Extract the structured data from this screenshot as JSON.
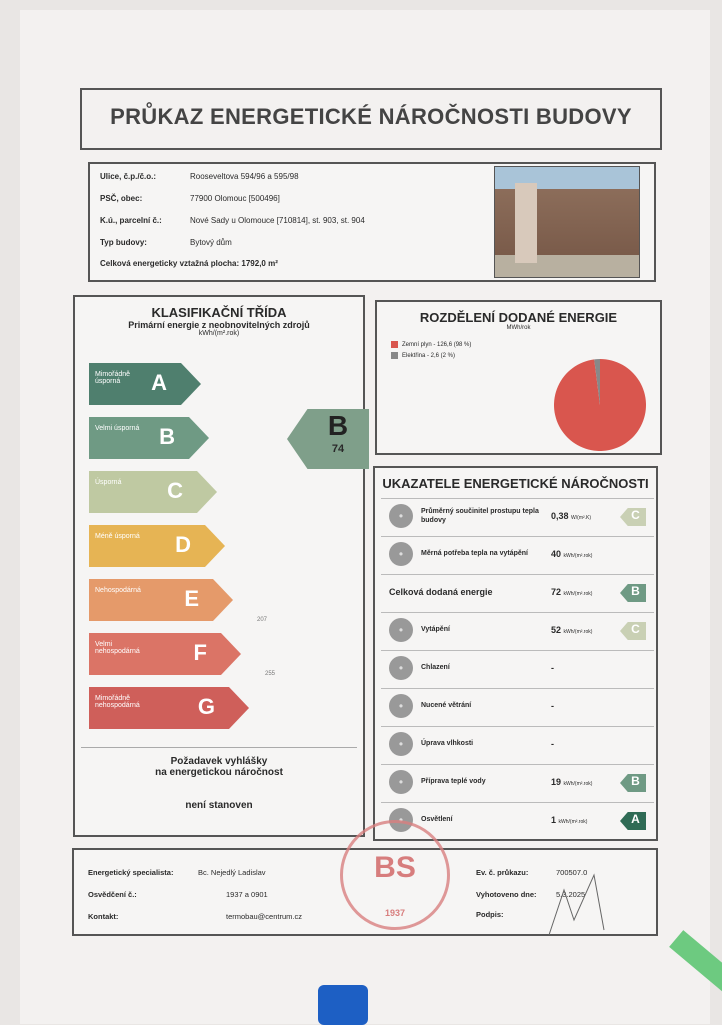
{
  "title": "PRŮKAZ ENERGETICKÉ NÁROČNOSTI BUDOVY",
  "info": {
    "street_label": "Ulice, č.p./č.o.:",
    "street": "Rooseveltova 594/96 a 595/98",
    "psc_label": "PSČ, obec:",
    "psc": "77900 Olomouc [500496]",
    "ku_label": "K.ú., parcelní č.:",
    "ku": "Nové Sady u Olomouce [710814], st. 903, st. 904",
    "type_label": "Typ budovy:",
    "type": "Bytový dům",
    "area_label": "Celková energeticky vztažná plocha:",
    "area": "1792,0 m²"
  },
  "klasifikace": {
    "title": "KLASIFIKAČNÍ TŘÍDA",
    "subtitle": "Primární energie z neobnovitelných zdrojů",
    "unit": "kWh/(m².rok)",
    "bands": [
      {
        "letter": "A",
        "label": "Mimořádně úsporná",
        "color": "#4f7f6e"
      },
      {
        "letter": "B",
        "label": "Velmi úsporná",
        "color": "#6f9a84"
      },
      {
        "letter": "C",
        "label": "Úsporná",
        "color": "#bfc9a2"
      },
      {
        "letter": "D",
        "label": "Méně úsporná",
        "color": "#e6b454"
      },
      {
        "letter": "E",
        "label": "Nehospodárná",
        "color": "#e59a6a"
      },
      {
        "letter": "F",
        "label": "Velmi nehospodárná",
        "color": "#db7466"
      },
      {
        "letter": "G",
        "label": "Mimořádně nehospodárná",
        "color": "#cf5f5a"
      }
    ],
    "thresholds": {
      "F": "207",
      "G": "255"
    },
    "current": {
      "class": "B",
      "value": "74"
    },
    "requirement_title_1": "Požadavek vyhlášky",
    "requirement_title_2": "na energetickou náročnost",
    "requirement_value": "není stanoven"
  },
  "rozdeleni": {
    "title": "ROZDĚLENÍ DODANÉ ENERGIE",
    "unit": "MWh/rok",
    "legend": [
      {
        "label": "Zemní plyn - 126,6 (98 %)",
        "color": "#d9564e"
      },
      {
        "label": "Elektřina - 2,6 (2 %)",
        "color": "#888888"
      }
    ],
    "chart_data": {
      "type": "pie",
      "categories": [
        "Zemní plyn",
        "Elektřina"
      ],
      "values": [
        126.6,
        2.6
      ],
      "percent": [
        98,
        2
      ]
    }
  },
  "ukazatele": {
    "title": "UKAZATELE ENERGETICKÉ NÁROČNOSTI",
    "rows": [
      {
        "name": "Průměrný součinitel prostupu tepla budovy",
        "value": "0,38",
        "unit": "W/(m².K)",
        "class": "C",
        "color": "#c9d0b4",
        "icon": "house-icon"
      },
      {
        "name": "Měrná potřeba tepla na vytápění",
        "value": "40",
        "unit": "kWh/(m².rok)",
        "class": "",
        "color": "",
        "icon": "radiator-icon"
      },
      {
        "name": "Celková dodaná energie",
        "value": "72",
        "unit": "kWh/(m².rok)",
        "class": "B",
        "color": "#6f9a84",
        "icon": ""
      },
      {
        "name": "Vytápění",
        "value": "52",
        "unit": "kWh/(m².rok)",
        "class": "C",
        "color": "#c9d0b4",
        "icon": "heating-icon"
      },
      {
        "name": "Chlazení",
        "value": "-",
        "unit": "",
        "class": "",
        "color": "",
        "icon": "thermometer-icon"
      },
      {
        "name": "Nucené větrání",
        "value": "-",
        "unit": "",
        "class": "",
        "color": "",
        "icon": "fan-icon"
      },
      {
        "name": "Úprava vlhkosti",
        "value": "-",
        "unit": "",
        "class": "",
        "color": "",
        "icon": "drop-icon"
      },
      {
        "name": "Příprava teplé vody",
        "value": "19",
        "unit": "kWh/(m².rok)",
        "class": "B",
        "color": "#6f9a84",
        "icon": "faucet-icon"
      },
      {
        "name": "Osvětlení",
        "value": "1",
        "unit": "kWh/(m².rok)",
        "class": "A",
        "color": "#2f6b55",
        "icon": "bulb-icon"
      }
    ]
  },
  "footer": {
    "spec_label": "Energetický specialista:",
    "spec": "Bc. Nejedlý Ladislav",
    "osv_label": "Osvědčení č.:",
    "osv": "1937 a 0901",
    "contact_label": "Kontakt:",
    "contact": "termobau@centrum.cz",
    "ev_label": "Ev. č. průkazu:",
    "ev": "700507.0",
    "date_label": "Vyhotoveno dne:",
    "date": "5.3.2025",
    "sign_label": "Podpis:"
  },
  "stamp": {
    "text": "BS",
    "year": "1937"
  }
}
